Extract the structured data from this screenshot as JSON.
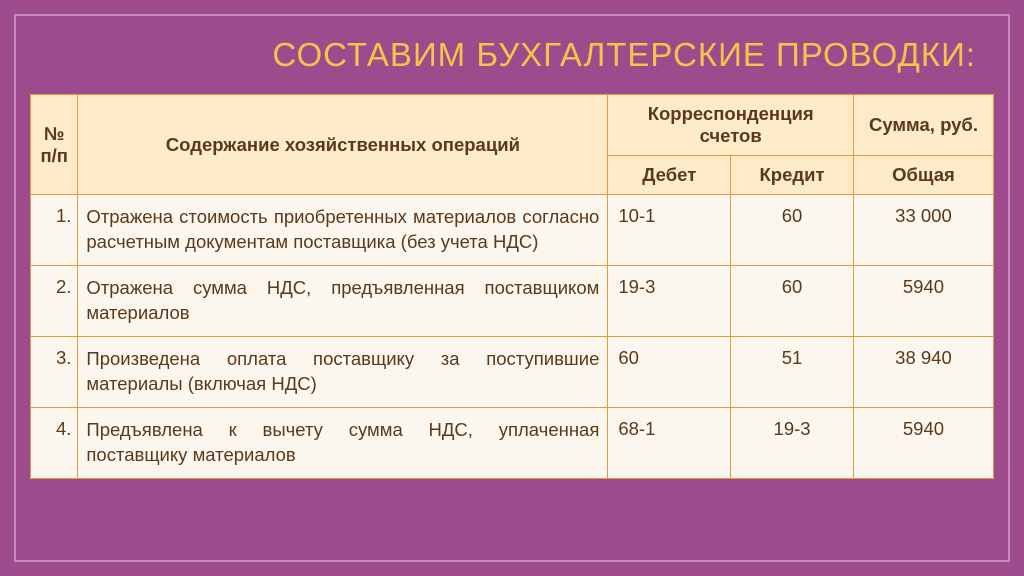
{
  "colors": {
    "page_bg": "#9e4b8e",
    "frame_border": "#c989b8",
    "title_color": "#f5c24a",
    "table_bg": "#fbf6ee",
    "header_bg": "#feecc8",
    "cell_border": "#e29a3e",
    "text_color": "#5a3a1a"
  },
  "title": "СОСТАВИМ БУХГАЛТЕРСКИЕ ПРОВОДКИ:",
  "headers": {
    "num": "№ п/п",
    "desc": "Содержание хозяйственных операций",
    "corr": "Корреспонденция счетов",
    "sum": "Сумма, руб.",
    "debit": "Дебет",
    "credit": "Кредит",
    "total": "Общая"
  },
  "rows": [
    {
      "n": "1.",
      "desc": "Отражена стоимость приобретенных материалов согласно расчетным документам поставщика (без учета НДС)",
      "debit": "10-1",
      "credit": "60",
      "sum": "33 000"
    },
    {
      "n": "2.",
      "desc": "Отражена сумма НДС, предъявленная поставщиком материалов",
      "debit": "19-3",
      "credit": "60",
      "sum": "5940"
    },
    {
      "n": "3.",
      "desc": "Произведена оплата поставщику за поступившие материалы (включая НДС)",
      "debit": "60",
      "credit": "51",
      "sum": "38 940"
    },
    {
      "n": "4.",
      "desc": "Предъявлена к вычету сумма НДС, уплаченная поставщику материалов",
      "debit": "68-1",
      "credit": "19-3",
      "sum": "5940"
    }
  ]
}
